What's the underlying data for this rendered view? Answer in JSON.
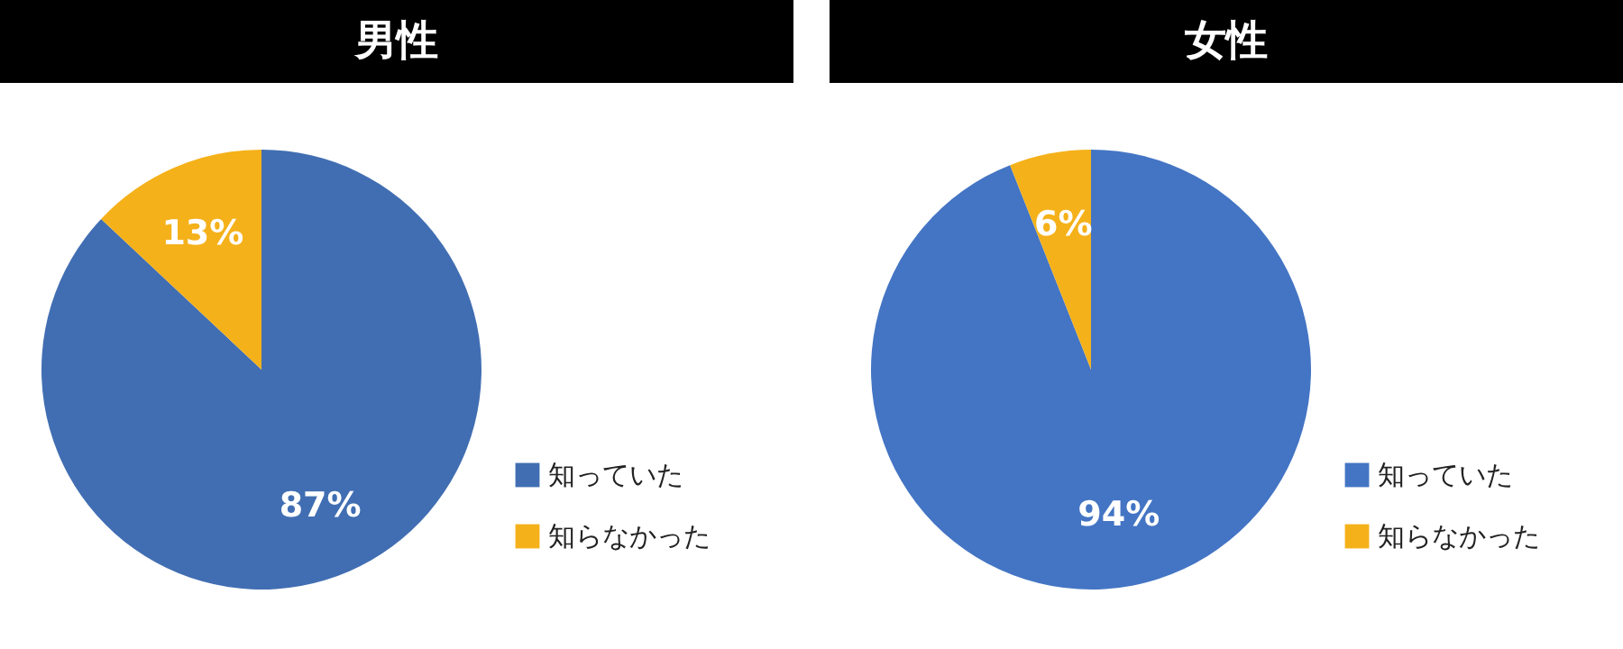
{
  "chart_data": [
    {
      "type": "pie",
      "title": "男性",
      "categories": [
        "知っていた",
        "知らなかった"
      ],
      "values": [
        87,
        13
      ],
      "colors": [
        "#416eb2",
        "#f5b11a"
      ],
      "value_labels": [
        "87%",
        "13%"
      ],
      "legend": "bottom right"
    },
    {
      "type": "pie",
      "title": "女性",
      "categories": [
        "知っていた",
        "知らなかった"
      ],
      "values": [
        94,
        6
      ],
      "colors": [
        "#4475c4",
        "#f5b11a"
      ],
      "value_labels": [
        "94%",
        "6%"
      ],
      "legend": "bottom right"
    }
  ]
}
